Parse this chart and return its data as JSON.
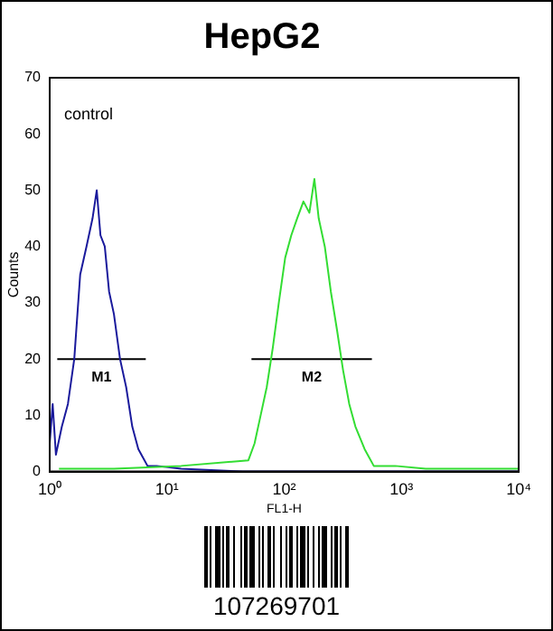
{
  "chart_data": {
    "type": "line",
    "title": "HepG2",
    "xlabel": "FL1-H",
    "ylabel": "Counts",
    "annotations": [
      "control",
      "107269701"
    ],
    "xlim": [
      1,
      10000
    ],
    "ylim": [
      0,
      70
    ],
    "log": "x",
    "xticks": [
      {
        "value": 1,
        "label": "10⁰"
      },
      {
        "value": 10,
        "label": "10¹"
      },
      {
        "value": 100,
        "label": "10²"
      },
      {
        "value": 1000,
        "label": "10³"
      },
      {
        "value": 10000,
        "label": "10⁴"
      }
    ],
    "yticks": [
      0,
      10,
      20,
      30,
      40,
      50,
      60,
      70
    ],
    "grid": false,
    "legend": false,
    "marker": "none",
    "line_style": "solid",
    "series": [
      {
        "color": "#33dd33",
        "x": [
          1.2,
          3.53,
          13.2,
          49.5,
          55.9,
          63,
          71,
          80,
          90,
          102,
          115,
          129,
          146,
          164,
          181,
          197,
          222,
          250,
          283,
          318,
          359,
          405,
          485,
          581,
          885,
          1611,
          10000
        ],
        "values": [
          0.5,
          0.5,
          1,
          2,
          5,
          10,
          15,
          22,
          30,
          38,
          42,
          45,
          48,
          46,
          52,
          45,
          40,
          32,
          25,
          18,
          12,
          8,
          4,
          1,
          1,
          0.5,
          0.5
        ]
      },
      {
        "color": "#1a1a9c",
        "x": [
          1,
          1.06,
          1.13,
          1.27,
          1.43,
          1.62,
          1.82,
          2.06,
          2.32,
          2.52,
          2.71,
          2.95,
          3.21,
          3.53,
          3.98,
          4.49,
          5.06,
          5.7,
          6.83,
          8.18,
          13.2,
          44,
          10000
        ],
        "values": [
          5,
          12,
          3,
          8,
          12,
          20,
          35,
          40,
          45,
          50,
          42,
          40,
          32,
          28,
          20,
          15,
          8,
          4,
          1,
          1,
          0.5,
          0,
          0
        ]
      },
      {
        "type": "line",
        "name": "M1",
        "color": "#000000",
        "x": [
          1.16,
          6.6
        ],
        "values": [
          20,
          20
        ]
      },
      {
        "type": "line",
        "name": "M2",
        "color": "#000000",
        "x": [
          52.6,
          560
        ],
        "values": [
          20,
          20
        ]
      }
    ]
  }
}
